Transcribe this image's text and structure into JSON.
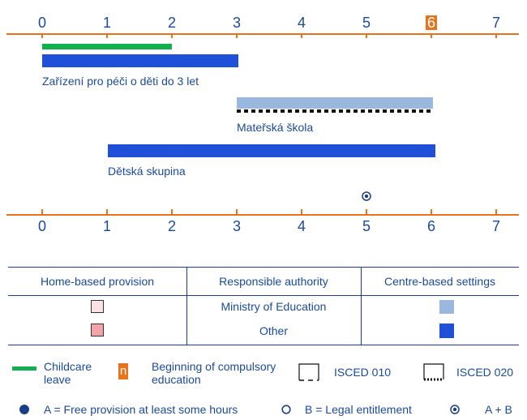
{
  "axis": {
    "ticks": [
      "0",
      "1",
      "2",
      "3",
      "4",
      "5",
      "6",
      "7"
    ],
    "highlight_tick": "6",
    "color": "#e8731c"
  },
  "bars": {
    "childcare_leave_color": "#10b050",
    "blue_other_color": "#2150d8",
    "light_blue_moe_color": "#9ab8dd"
  },
  "labels": {
    "zarizeni": "Zařízení pro péči o děti do 3 let",
    "materska": "Mateřská škola",
    "detska": "Dětská skupina"
  },
  "table": {
    "headers": [
      "Home-based provision",
      "Responsible authority",
      "Centre-based settings"
    ],
    "rows": [
      {
        "authority": "Ministry of Education"
      },
      {
        "authority": "Other"
      }
    ]
  },
  "legend": {
    "childcare_leave": "Childcare leave",
    "n_symbol": "n",
    "compulsory": "Beginning of compulsory education",
    "isced010": "ISCED 010",
    "isced020": "ISCED 020",
    "free_provision": "A = Free provision at least some hours",
    "legal_entitlement": "B = Legal entitlement",
    "a_plus_b": "A + B"
  }
}
